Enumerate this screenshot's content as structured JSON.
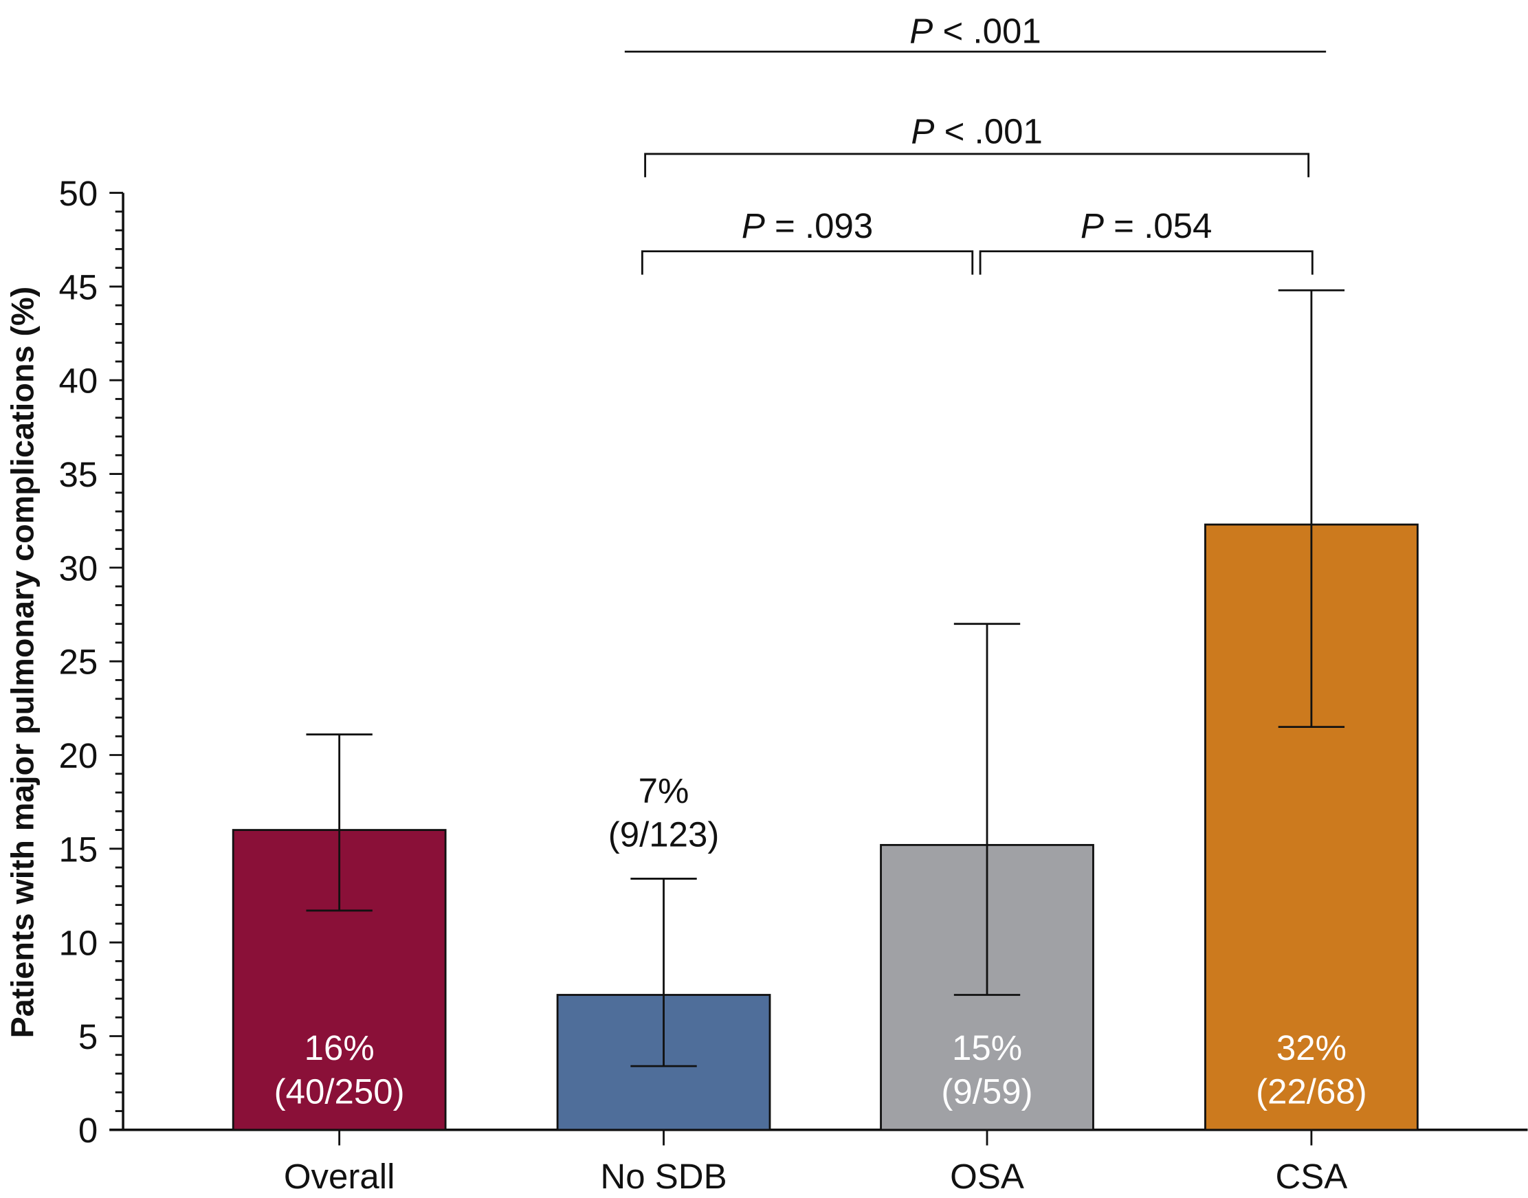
{
  "chart_data": {
    "type": "bar",
    "title": "",
    "xlabel": "",
    "ylabel": "Patients with major pulmonary complications (%)",
    "ylim": [
      0,
      50
    ],
    "yticks": [
      0,
      5,
      10,
      15,
      20,
      25,
      30,
      35,
      40,
      45,
      50
    ],
    "categories": [
      "Overall",
      "No SDB",
      "OSA",
      "CSA"
    ],
    "values": [
      16.0,
      7.2,
      15.2,
      32.3
    ],
    "ci_low": [
      11.7,
      3.4,
      7.2,
      21.5
    ],
    "ci_high": [
      21.1,
      13.4,
      27.0,
      44.8
    ],
    "colors": [
      "#8a1038",
      "#4f6e9a",
      "#a0a1a5",
      "#cc7a1e"
    ],
    "bar_labels": [
      {
        "pct": "16%",
        "count": "(40/250)",
        "position": "inside"
      },
      {
        "pct": "7%",
        "count": "(9/123)",
        "position": "above"
      },
      {
        "pct": "15%",
        "count": "(9/59)",
        "position": "inside"
      },
      {
        "pct": "32%",
        "count": "(22/68)",
        "position": "inside"
      }
    ],
    "comparisons": [
      {
        "from": "No SDB",
        "to": "OSA",
        "p_letter": "P",
        "p_text": " = .093"
      },
      {
        "from": "OSA",
        "to": "CSA",
        "p_letter": "P",
        "p_text": " = .054"
      },
      {
        "from": "No SDB",
        "to": "CSA",
        "p_letter": "P",
        "p_text": " < .001"
      },
      {
        "from": "No SDB",
        "to": "CSA",
        "p_letter": "P",
        "p_text": " < .001",
        "style": "line"
      }
    ],
    "grid": false
  }
}
